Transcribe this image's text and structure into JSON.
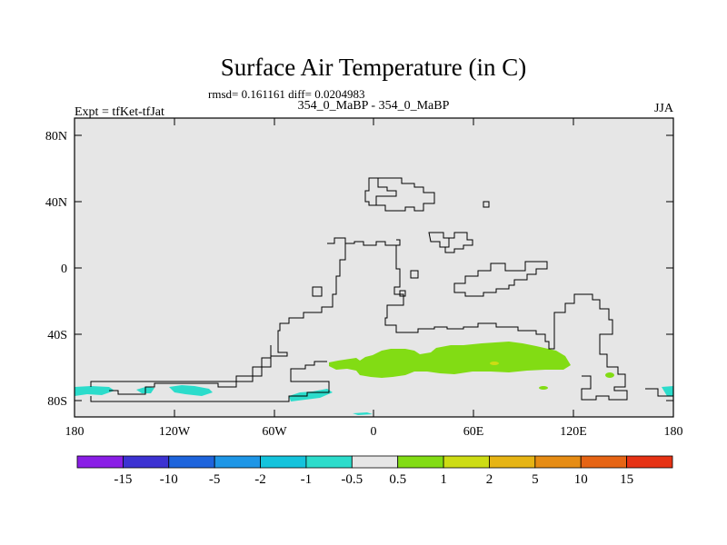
{
  "title": "Surface Air Temperature (in C)",
  "stats_line": "rmsd= 0.161161 diff= 0.0204983",
  "run_label": "354_0_MaBP - 354_0_MaBP",
  "expt_label": "Expt = tfKet-tfJat",
  "season_label": "JJA",
  "lat_ticks": [
    "80N",
    "40N",
    "0",
    "40S",
    "80S"
  ],
  "lon_ticks": [
    "180",
    "120W",
    "60W",
    "0",
    "60E",
    "120E",
    "180"
  ],
  "colorbar": {
    "labels": [
      "-15",
      "-10",
      "-5",
      "-2",
      "-1",
      "-0.5",
      "0.5",
      "1",
      "2",
      "5",
      "10",
      "15"
    ],
    "colors": [
      "#8a1ee6",
      "#3c32d2",
      "#1e64dc",
      "#1e96e6",
      "#14c3dc",
      "#2cdccb",
      "#e6e6e6",
      "#82dc14",
      "#cddc14",
      "#e6b414",
      "#e68c14",
      "#e66414",
      "#e63214"
    ]
  },
  "colors": {
    "background": "#e6e6e6",
    "warm_anomaly": "#82dc14",
    "cool_anomaly": "#2cdccb"
  }
}
